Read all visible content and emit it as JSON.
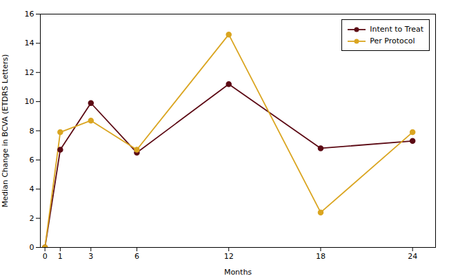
{
  "chart_data": {
    "type": "line",
    "x": [
      0,
      1,
      3,
      6,
      12,
      18,
      24
    ],
    "series": [
      {
        "name": "Intent to Treat",
        "color": "#5C0A14",
        "values": [
          0,
          6.7,
          9.9,
          6.5,
          11.2,
          6.8,
          7.3
        ]
      },
      {
        "name": "Per Protocol",
        "color": "#DAA520",
        "values": [
          0,
          7.9,
          8.7,
          6.7,
          14.6,
          2.4,
          7.9
        ]
      }
    ],
    "marker": "o",
    "xlabel": "Months",
    "ylabel": "Median Change in BCVA (ETDRS Letters)",
    "xlim": [
      -0.3,
      25.5
    ],
    "ylim": [
      0,
      16
    ],
    "xticks": [
      0,
      1,
      3,
      6,
      12,
      18,
      24
    ],
    "yticks": [
      0,
      2,
      4,
      6,
      8,
      10,
      12,
      14,
      16
    ],
    "legend": "upper right"
  }
}
